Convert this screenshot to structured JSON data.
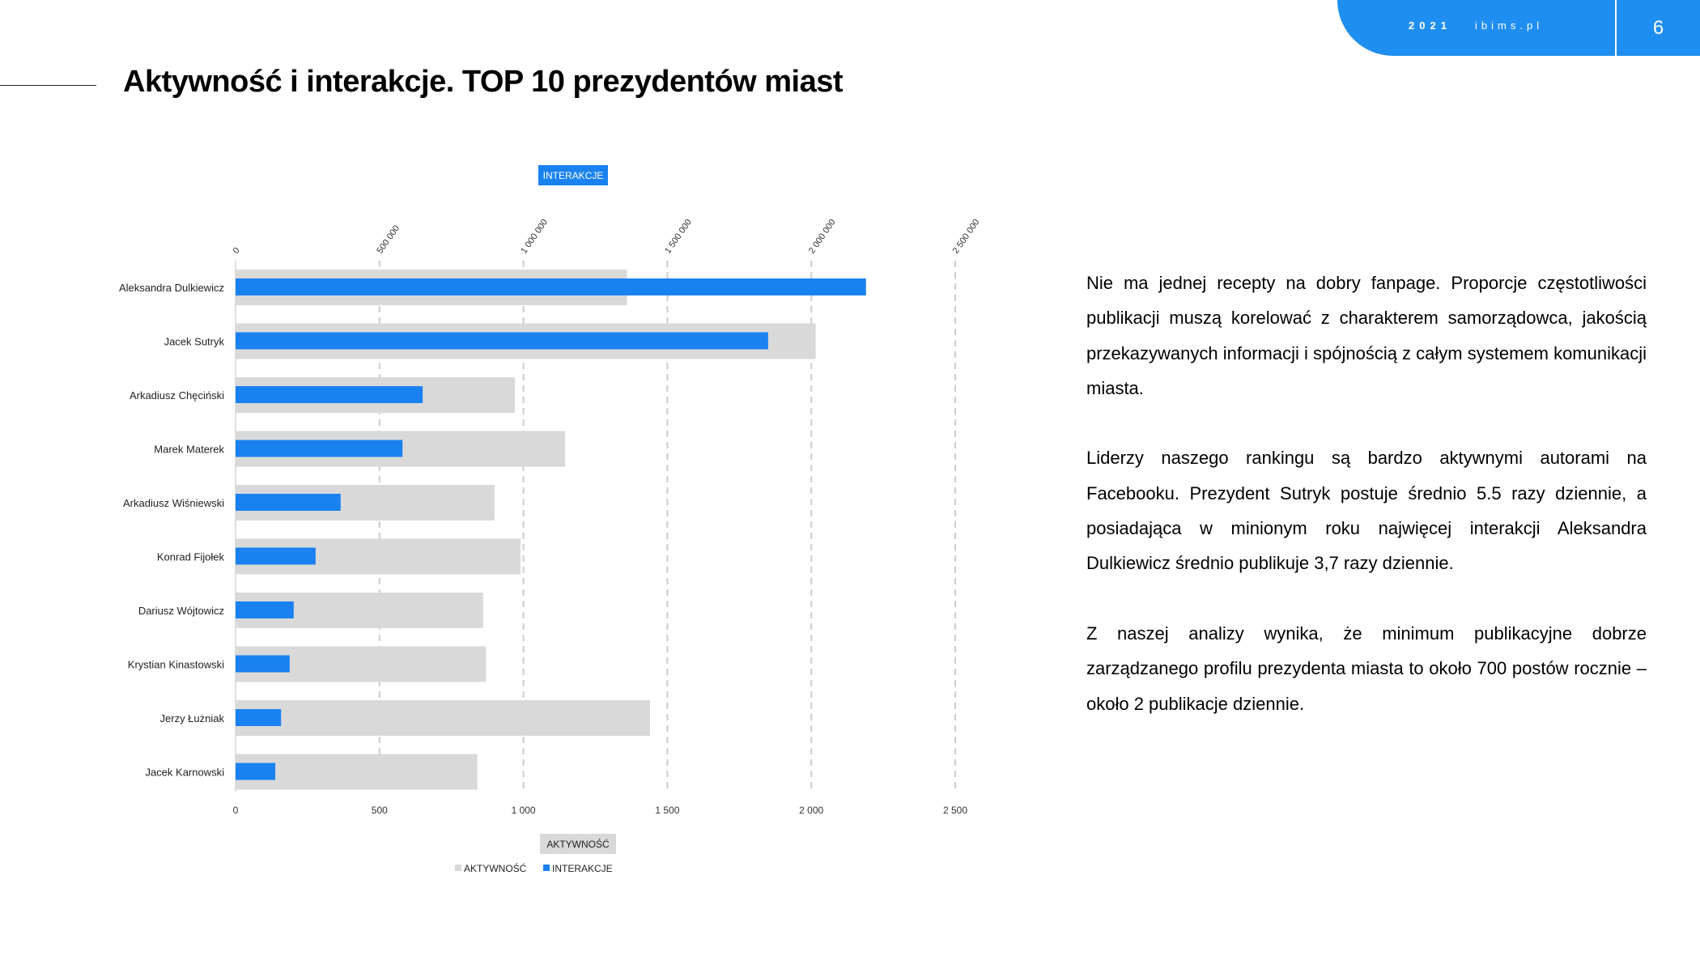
{
  "header": {
    "year": "2021",
    "site": "ibims.pl",
    "page_number": "6"
  },
  "slide": {
    "title": "Aktywność i interakcje. TOP 10 prezydentów miast"
  },
  "chart_data": {
    "type": "bar",
    "orientation": "horizontal",
    "categories": [
      "Aleksandra Dulkiewicz",
      "Jacek Sutryk",
      "Arkadiusz Chęciński",
      "Marek Materek",
      "Arkadiusz Wiśniewski",
      "Konrad Fijołek",
      "Dariusz Wójtowicz",
      "Krystian Kinastowski",
      "Jerzy Łużniak",
      "Jacek Karnowski"
    ],
    "series": [
      {
        "name": "AKTYWNOŚĆ",
        "axis": "bottom",
        "color": "#d9d9d9",
        "values": [
          1360,
          2015,
          970,
          1145,
          900,
          990,
          860,
          870,
          1440,
          840
        ]
      },
      {
        "name": "INTERAKCJE",
        "axis": "top",
        "color": "#1a82f0",
        "values": [
          2190000,
          1850000,
          650000,
          580000,
          365000,
          278000,
          202000,
          188000,
          158000,
          138000
        ]
      }
    ],
    "top_axis": {
      "label": "INTERAKCJE",
      "ticks": [
        "0",
        "500 000",
        "1 000 000",
        "1 500 000",
        "2 000 000",
        "2 500 000"
      ],
      "range": [
        0,
        2500000
      ]
    },
    "bottom_axis": {
      "label": "AKTYWNOŚĆ",
      "ticks": [
        "0",
        "500",
        "1 000",
        "1 500",
        "2 000",
        "2 500"
      ],
      "range": [
        0,
        2500
      ]
    },
    "grid": true,
    "legend": {
      "position": "bottom",
      "entries": [
        "AKTYWNOŚĆ",
        "INTERAKCJE"
      ]
    }
  },
  "body": {
    "paragraphs": [
      "Nie ma jednej recepty na dobry fanpage. Proporcje częstotliwości publikacji muszą korelować z charakterem samorządowca, jakością przekazywanych informacji i spójnością z całym systemem komunikacji miasta.",
      "Liderzy naszego rankingu są bardzo aktywnymi autorami na Facebooku. Prezydent Sutryk postuje średnio 5.5 razy dziennie, a posiadająca w minionym roku najwięcej interakcji Aleksandra Dulkiewicz średnio publikuje 3,7 razy dziennie.",
      "Z naszej analizy wynika, że minimum publikacyjne dobrze zarządzanego profilu prezydenta miasta to około 700 postów rocznie – około 2 publikacje dziennie."
    ]
  }
}
